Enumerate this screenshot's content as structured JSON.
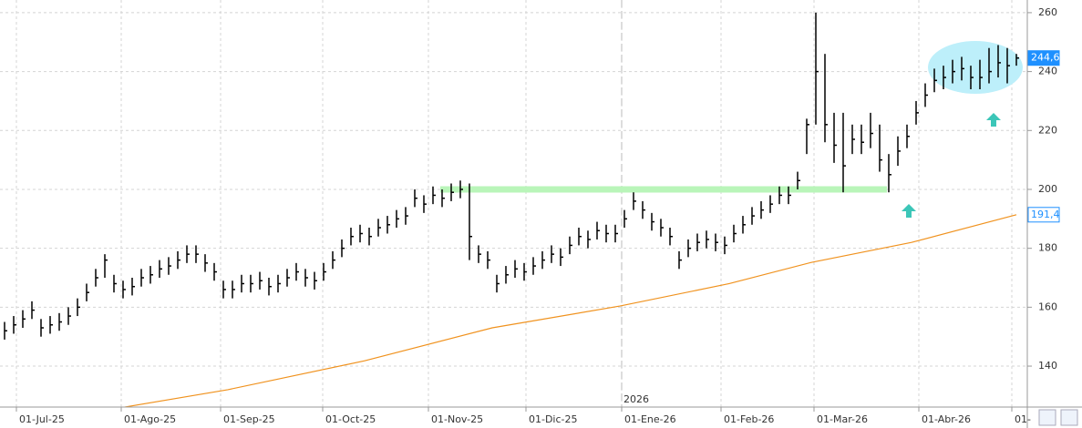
{
  "chart_data": {
    "type": "hlc",
    "color": "#000000",
    "xlim": [
      0,
      225.4
    ],
    "ylim": [
      126.1,
      264.3
    ],
    "yticks": [
      140,
      160,
      180,
      200,
      220,
      240,
      260
    ],
    "xticks": [
      {
        "value": 3.6,
        "label": "01-Jul-25"
      },
      {
        "value": 26.6,
        "label": "01-Ago-25"
      },
      {
        "value": 48.4,
        "label": "01-Sep-25"
      },
      {
        "value": 70.8,
        "label": "01-Oct-25"
      },
      {
        "value": 94,
        "label": "01-Nov-25"
      },
      {
        "value": 115.4,
        "label": "01-Dic-25"
      },
      {
        "value": 136.4,
        "label": "01-Ene-26"
      },
      {
        "value": 158.2,
        "label": "01-Feb-26"
      },
      {
        "value": 178.6,
        "label": "01-Mar-26"
      },
      {
        "value": 201.6,
        "label": "01-Abr-26"
      },
      {
        "value": 222,
        "label": "01-"
      }
    ],
    "grid": true,
    "x": [
      1,
      3,
      5,
      7,
      9,
      11,
      13,
      15,
      17,
      19,
      21,
      23,
      25,
      27,
      29,
      31,
      33,
      35,
      37,
      39,
      41,
      43,
      45,
      47,
      49,
      51,
      53,
      55,
      57,
      59,
      61,
      63,
      65,
      67,
      69,
      71,
      73,
      75,
      77,
      79,
      81,
      83,
      85,
      87,
      89,
      91,
      93,
      95,
      97,
      99,
      101,
      103,
      105,
      107,
      109,
      111,
      113,
      115,
      117,
      119,
      121,
      123,
      125,
      127,
      129,
      131,
      133,
      135,
      137,
      139,
      141,
      143,
      145,
      147,
      149,
      151,
      153,
      155,
      157,
      159,
      161,
      163,
      165,
      167,
      169,
      171,
      173,
      175,
      177,
      179,
      181,
      183,
      185,
      187,
      189,
      191,
      193,
      195,
      197,
      199,
      201,
      203,
      205,
      207,
      209,
      211,
      213,
      215,
      217,
      219,
      221,
      223
    ],
    "high": [
      155,
      157,
      159,
      162,
      156,
      157,
      158,
      160,
      163,
      168,
      173,
      178,
      171,
      169,
      170,
      173,
      174,
      176,
      177,
      179,
      181,
      181,
      178,
      175,
      169,
      169,
      171,
      171,
      172,
      170,
      171,
      173,
      175,
      173,
      172,
      175,
      179,
      183,
      187,
      188,
      187,
      190,
      191,
      193,
      194,
      200,
      198,
      201,
      200,
      202,
      203,
      202,
      181,
      179,
      171,
      174,
      176,
      175,
      177,
      179,
      181,
      180,
      184,
      187,
      186,
      189,
      188,
      188,
      193,
      199,
      196,
      192,
      190,
      187,
      179,
      183,
      185,
      186,
      185,
      184,
      188,
      191,
      194,
      196,
      198,
      201,
      201,
      206,
      224,
      260,
      246,
      226,
      226,
      222,
      222,
      226,
      222,
      212,
      218,
      222,
      230,
      236,
      241,
      242,
      244,
      245,
      242,
      244,
      248,
      249,
      248,
      246
    ],
    "low": [
      149,
      151,
      153,
      156,
      150,
      151,
      152,
      154,
      157,
      162,
      167,
      170,
      165,
      163,
      164,
      167,
      168,
      170,
      171,
      173,
      175,
      175,
      172,
      169,
      163,
      163,
      165,
      165,
      166,
      164,
      165,
      167,
      169,
      167,
      166,
      169,
      173,
      177,
      181,
      182,
      181,
      184,
      185,
      187,
      188,
      194,
      192,
      195,
      194,
      196,
      197,
      176,
      175,
      173,
      165,
      168,
      170,
      169,
      171,
      173,
      175,
      174,
      178,
      181,
      180,
      183,
      182,
      182,
      187,
      193,
      190,
      186,
      184,
      181,
      173,
      177,
      179,
      180,
      179,
      178,
      182,
      185,
      188,
      190,
      192,
      195,
      195,
      200,
      212,
      222,
      216,
      209,
      199,
      212,
      212,
      214,
      206,
      199,
      208,
      214,
      222,
      228,
      233,
      234,
      236,
      237,
      234,
      234,
      236,
      238,
      236,
      242
    ],
    "close": [
      152,
      154,
      156,
      159,
      153,
      154,
      155,
      157,
      160,
      165,
      170,
      176,
      168,
      166,
      167,
      170,
      171,
      173,
      174,
      176,
      178,
      178,
      175,
      172,
      166,
      166,
      168,
      168,
      169,
      167,
      168,
      170,
      172,
      170,
      169,
      172,
      176,
      180,
      184,
      185,
      184,
      187,
      188,
      190,
      191,
      197,
      195,
      198,
      197,
      199,
      200,
      184,
      178,
      176,
      168,
      171,
      173,
      172,
      174,
      176,
      178,
      177,
      181,
      184,
      183,
      186,
      185,
      185,
      190,
      196,
      193,
      189,
      187,
      184,
      176,
      180,
      182,
      183,
      182,
      181,
      185,
      188,
      191,
      193,
      195,
      198,
      198,
      203,
      222,
      240,
      222,
      215,
      208,
      217,
      216,
      219,
      210,
      205,
      213,
      218,
      226,
      232,
      237,
      238,
      240,
      241,
      238,
      238,
      240,
      243,
      242,
      244.6
    ],
    "moving_average": {
      "color": "#f0921e",
      "x": [
        27,
        50,
        80,
        108,
        136,
        160,
        178,
        200,
        223
      ],
      "values": [
        126,
        132,
        141.8,
        153,
        160.4,
        168,
        175.2,
        182,
        191.4
      ]
    },
    "level": {
      "value": 200,
      "x": [
        96.6,
        194.6
      ],
      "color": "#b9f5b9"
    },
    "year_divider": {
      "x": 136.4,
      "label": "2026"
    },
    "price_labels": [
      {
        "value": 244.6,
        "label": "244,6",
        "color": "#1e90ff"
      },
      {
        "value": 191.4,
        "label": "191,4",
        "color": "#1e90ff"
      }
    ]
  }
}
